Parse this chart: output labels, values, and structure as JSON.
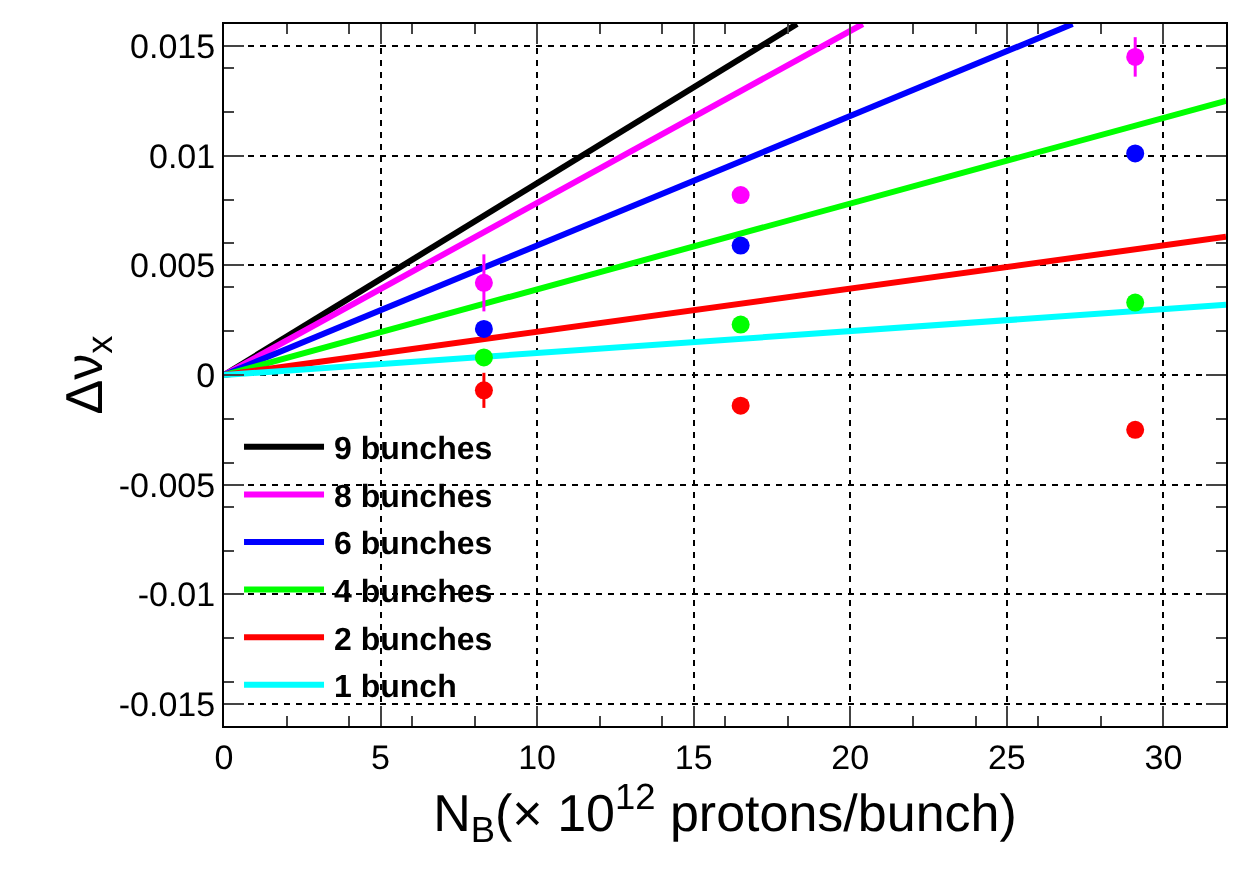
{
  "chart_data": {
    "type": "line",
    "xlabel": "N$_{B}$(× 10$^{12}$ protons/bunch)",
    "ylabel": "Δν$_{x}$",
    "xlim": [
      0,
      32
    ],
    "xticks": [
      0,
      5,
      10,
      15,
      20,
      25,
      30
    ],
    "ylim": [
      -0.016,
      0.016
    ],
    "yticks": [
      -0.015,
      -0.01,
      -0.005,
      0,
      0.005,
      0.01,
      0.015
    ],
    "grid": true,
    "legend": "bottom left",
    "series": [
      {
        "name": "9 bunches",
        "color": "#000000",
        "marker": "none",
        "x": [
          0,
          18.3
        ],
        "values": [
          0,
          0.016
        ]
      },
      {
        "name": "8 bunches",
        "color": "#ff00ff",
        "marker": "none",
        "x": [
          0,
          20.4
        ],
        "values": [
          0,
          0.016
        ]
      },
      {
        "name": "6 bunches",
        "color": "#0000ff",
        "marker": "none",
        "x": [
          0,
          27.1
        ],
        "values": [
          0,
          0.016
        ]
      },
      {
        "name": "4 bunches",
        "color": "#00ff00",
        "marker": "none",
        "x": [
          0,
          32
        ],
        "values": [
          0,
          0.0125
        ]
      },
      {
        "name": "2 bunches",
        "color": "#ff0000",
        "marker": "none",
        "x": [
          0,
          32
        ],
        "values": [
          0,
          0.0063
        ]
      },
      {
        "name": "1 bunch",
        "color": "#00ffff",
        "marker": "none",
        "x": [
          0,
          32
        ],
        "values": [
          0,
          0.0032
        ]
      },
      {
        "color": "#ff00ff",
        "type": "scatter",
        "marker": "circle",
        "x": [
          8.3,
          16.5,
          29.1
        ],
        "values": [
          0.0042,
          0.0082,
          0.0145
        ],
        "errors": [
          0.0013,
          null,
          0.0009
        ]
      },
      {
        "color": "#0000ff",
        "type": "scatter",
        "marker": "circle",
        "x": [
          8.3,
          16.5,
          29.1
        ],
        "values": [
          0.0021,
          0.0059,
          0.0101
        ]
      },
      {
        "color": "#00ff00",
        "type": "scatter",
        "marker": "circle",
        "x": [
          8.3,
          16.5,
          29.1
        ],
        "values": [
          0.0008,
          0.0023,
          0.0033
        ]
      },
      {
        "color": "#ff0000",
        "type": "scatter",
        "marker": "circle",
        "x": [
          8.3,
          16.5,
          29.1
        ],
        "values": [
          -0.0007,
          -0.0014,
          -0.0025
        ],
        "errors": [
          0.0008,
          null,
          null
        ]
      }
    ]
  }
}
